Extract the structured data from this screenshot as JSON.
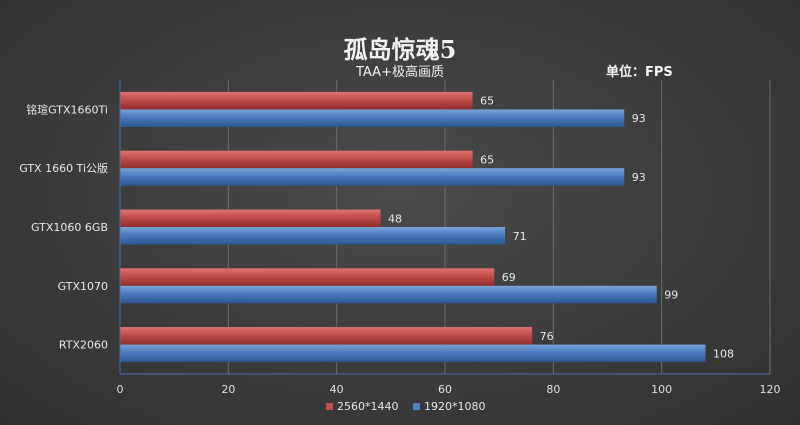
{
  "title": "孤岛惊魂5",
  "subtitle": "TAA+极高画质",
  "unit": "单位：FPS",
  "chart_data": {
    "type": "bar",
    "orientation": "horizontal",
    "categories": [
      "铭瑄GTX1660Ti",
      "GTX 1660 Ti公版",
      "GTX1060 6GB",
      "GTX1070",
      "RTX2060"
    ],
    "series": [
      {
        "name": "2560*1440",
        "color": "#c0504d",
        "values": [
          65,
          65,
          48,
          69,
          76
        ]
      },
      {
        "name": "1920*1080",
        "color": "#4f81bd",
        "values": [
          93,
          93,
          71,
          99,
          108
        ]
      }
    ],
    "xlim": [
      0,
      120
    ],
    "x_ticks": [
      0,
      20,
      40,
      60,
      80,
      100,
      120
    ],
    "grid": true,
    "legend": "bottom",
    "data_labels": true
  }
}
